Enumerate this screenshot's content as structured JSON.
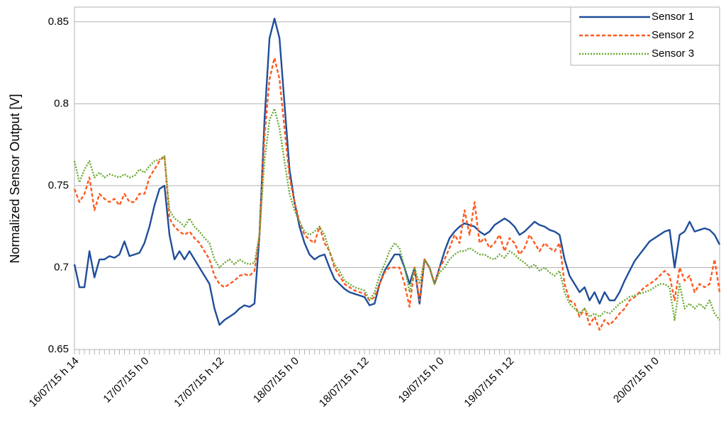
{
  "chart_data": {
    "type": "line",
    "y_label": "Normalized Sensor Output [V]",
    "categories": [
      "16/07/15 h 14",
      null,
      null,
      null,
      null,
      null,
      null,
      null,
      null,
      null,
      null,
      null,
      null,
      null,
      "17/07/15 h 0",
      null,
      null,
      null,
      null,
      null,
      null,
      null,
      null,
      null,
      null,
      null,
      null,
      null,
      null,
      "17/07/15 h 12",
      null,
      null,
      null,
      null,
      null,
      null,
      null,
      null,
      null,
      null,
      null,
      null,
      null,
      null,
      "18/07/15 h 0",
      null,
      null,
      null,
      null,
      null,
      null,
      null,
      null,
      null,
      null,
      null,
      null,
      null,
      "18/07/15 h 12",
      null,
      null,
      null,
      null,
      null,
      null,
      null,
      null,
      null,
      null,
      null,
      null,
      null,
      null,
      "19/07/15 h 0",
      null,
      null,
      null,
      null,
      null,
      null,
      null,
      null,
      null,
      null,
      null,
      null,
      null,
      "19/07/15 h 12",
      null,
      null,
      null,
      null,
      null,
      null,
      null,
      null,
      null,
      null,
      null,
      null,
      null,
      null,
      null,
      null,
      null,
      null,
      null,
      null,
      null,
      null,
      null,
      null,
      null,
      null,
      null,
      null,
      "20/07/15 h 0",
      null,
      null,
      null,
      null,
      null,
      null,
      null,
      null,
      null,
      null,
      null,
      null,
      null
    ],
    "series": [
      {
        "name": "Sensor 1",
        "color": "#1f4e9a",
        "dash": "solid",
        "values": [
          0.702,
          0.688,
          0.688,
          0.71,
          0.694,
          0.705,
          0.705,
          0.707,
          0.706,
          0.708,
          0.716,
          0.707,
          0.708,
          0.709,
          0.715,
          0.725,
          0.738,
          0.748,
          0.75,
          0.72,
          0.705,
          0.71,
          0.705,
          0.71,
          0.705,
          0.7,
          0.695,
          0.69,
          0.675,
          0.665,
          0.668,
          0.67,
          0.672,
          0.675,
          0.677,
          0.676,
          0.678,
          0.72,
          0.79,
          0.84,
          0.852,
          0.84,
          0.8,
          0.76,
          0.74,
          0.725,
          0.715,
          0.708,
          0.705,
          0.707,
          0.708,
          0.7,
          0.693,
          0.69,
          0.687,
          0.685,
          0.684,
          0.683,
          0.682,
          0.677,
          0.678,
          0.69,
          0.698,
          0.703,
          0.708,
          0.708,
          0.7,
          0.69,
          0.7,
          0.678,
          0.705,
          0.7,
          0.69,
          0.7,
          0.71,
          0.718,
          0.722,
          0.725,
          0.727,
          0.726,
          0.725,
          0.722,
          0.72,
          0.722,
          0.726,
          0.728,
          0.73,
          0.728,
          0.725,
          0.72,
          0.722,
          0.725,
          0.728,
          0.726,
          0.725,
          0.723,
          0.722,
          0.72,
          0.705,
          0.695,
          0.69,
          0.685,
          0.688,
          0.68,
          0.685,
          0.678,
          0.685,
          0.68,
          0.68,
          0.685,
          0.692,
          0.698,
          0.704,
          0.708,
          0.712,
          0.716,
          0.718,
          0.72,
          0.722,
          0.723,
          0.7,
          0.72,
          0.722,
          0.728,
          0.722,
          0.723,
          0.724,
          0.723,
          0.72,
          0.714
        ]
      },
      {
        "name": "Sensor 2",
        "color": "#ff5a1f",
        "dash": "dashed",
        "values": [
          0.748,
          0.74,
          0.745,
          0.755,
          0.735,
          0.745,
          0.742,
          0.74,
          0.742,
          0.738,
          0.745,
          0.74,
          0.74,
          0.745,
          0.745,
          0.755,
          0.76,
          0.765,
          0.768,
          0.73,
          0.725,
          0.722,
          0.72,
          0.722,
          0.718,
          0.715,
          0.71,
          0.705,
          0.695,
          0.69,
          0.688,
          0.69,
          0.692,
          0.695,
          0.696,
          0.695,
          0.698,
          0.72,
          0.78,
          0.815,
          0.828,
          0.815,
          0.785,
          0.755,
          0.74,
          0.728,
          0.72,
          0.717,
          0.715,
          0.725,
          0.715,
          0.71,
          0.7,
          0.695,
          0.69,
          0.688,
          0.686,
          0.685,
          0.684,
          0.68,
          0.682,
          0.69,
          0.697,
          0.7,
          0.7,
          0.7,
          0.69,
          0.676,
          0.7,
          0.68,
          0.705,
          0.7,
          0.69,
          0.7,
          0.705,
          0.712,
          0.72,
          0.715,
          0.735,
          0.72,
          0.74,
          0.715,
          0.718,
          0.712,
          0.715,
          0.72,
          0.71,
          0.718,
          0.715,
          0.708,
          0.712,
          0.72,
          0.715,
          0.71,
          0.715,
          0.712,
          0.71,
          0.715,
          0.69,
          0.68,
          0.678,
          0.67,
          0.675,
          0.665,
          0.67,
          0.662,
          0.668,
          0.665,
          0.668,
          0.672,
          0.675,
          0.68,
          0.682,
          0.685,
          0.688,
          0.69,
          0.692,
          0.695,
          0.698,
          0.695,
          0.68,
          0.7,
          0.692,
          0.695,
          0.685,
          0.69,
          0.688,
          0.69,
          0.705,
          0.685
        ]
      },
      {
        "name": "Sensor 3",
        "color": "#6aa832",
        "dash": "dotted",
        "values": [
          0.765,
          0.752,
          0.76,
          0.765,
          0.755,
          0.758,
          0.755,
          0.757,
          0.756,
          0.755,
          0.757,
          0.755,
          0.756,
          0.76,
          0.758,
          0.762,
          0.765,
          0.766,
          0.768,
          0.735,
          0.73,
          0.728,
          0.725,
          0.73,
          0.725,
          0.722,
          0.718,
          0.715,
          0.705,
          0.7,
          0.703,
          0.705,
          0.702,
          0.705,
          0.703,
          0.702,
          0.703,
          0.72,
          0.765,
          0.79,
          0.797,
          0.785,
          0.765,
          0.745,
          0.735,
          0.728,
          0.722,
          0.72,
          0.722,
          0.725,
          0.72,
          0.71,
          0.702,
          0.698,
          0.692,
          0.69,
          0.688,
          0.687,
          0.686,
          0.68,
          0.685,
          0.695,
          0.702,
          0.71,
          0.715,
          0.712,
          0.7,
          0.685,
          0.7,
          0.69,
          0.705,
          0.7,
          0.69,
          0.697,
          0.7,
          0.705,
          0.708,
          0.71,
          0.71,
          0.712,
          0.71,
          0.708,
          0.708,
          0.706,
          0.705,
          0.708,
          0.706,
          0.71,
          0.708,
          0.705,
          0.703,
          0.7,
          0.702,
          0.698,
          0.7,
          0.697,
          0.695,
          0.698,
          0.685,
          0.678,
          0.675,
          0.672,
          0.675,
          0.67,
          0.672,
          0.67,
          0.673,
          0.672,
          0.675,
          0.678,
          0.68,
          0.682,
          0.683,
          0.684,
          0.685,
          0.686,
          0.688,
          0.69,
          0.69,
          0.688,
          0.668,
          0.69,
          0.675,
          0.678,
          0.675,
          0.678,
          0.675,
          0.68,
          0.672,
          0.668
        ]
      }
    ],
    "ylim": [
      0.65,
      0.859
    ],
    "yticks": [
      0.65,
      0.7,
      0.75,
      0.8,
      0.85
    ],
    "grid": true,
    "legend": "top-right"
  }
}
